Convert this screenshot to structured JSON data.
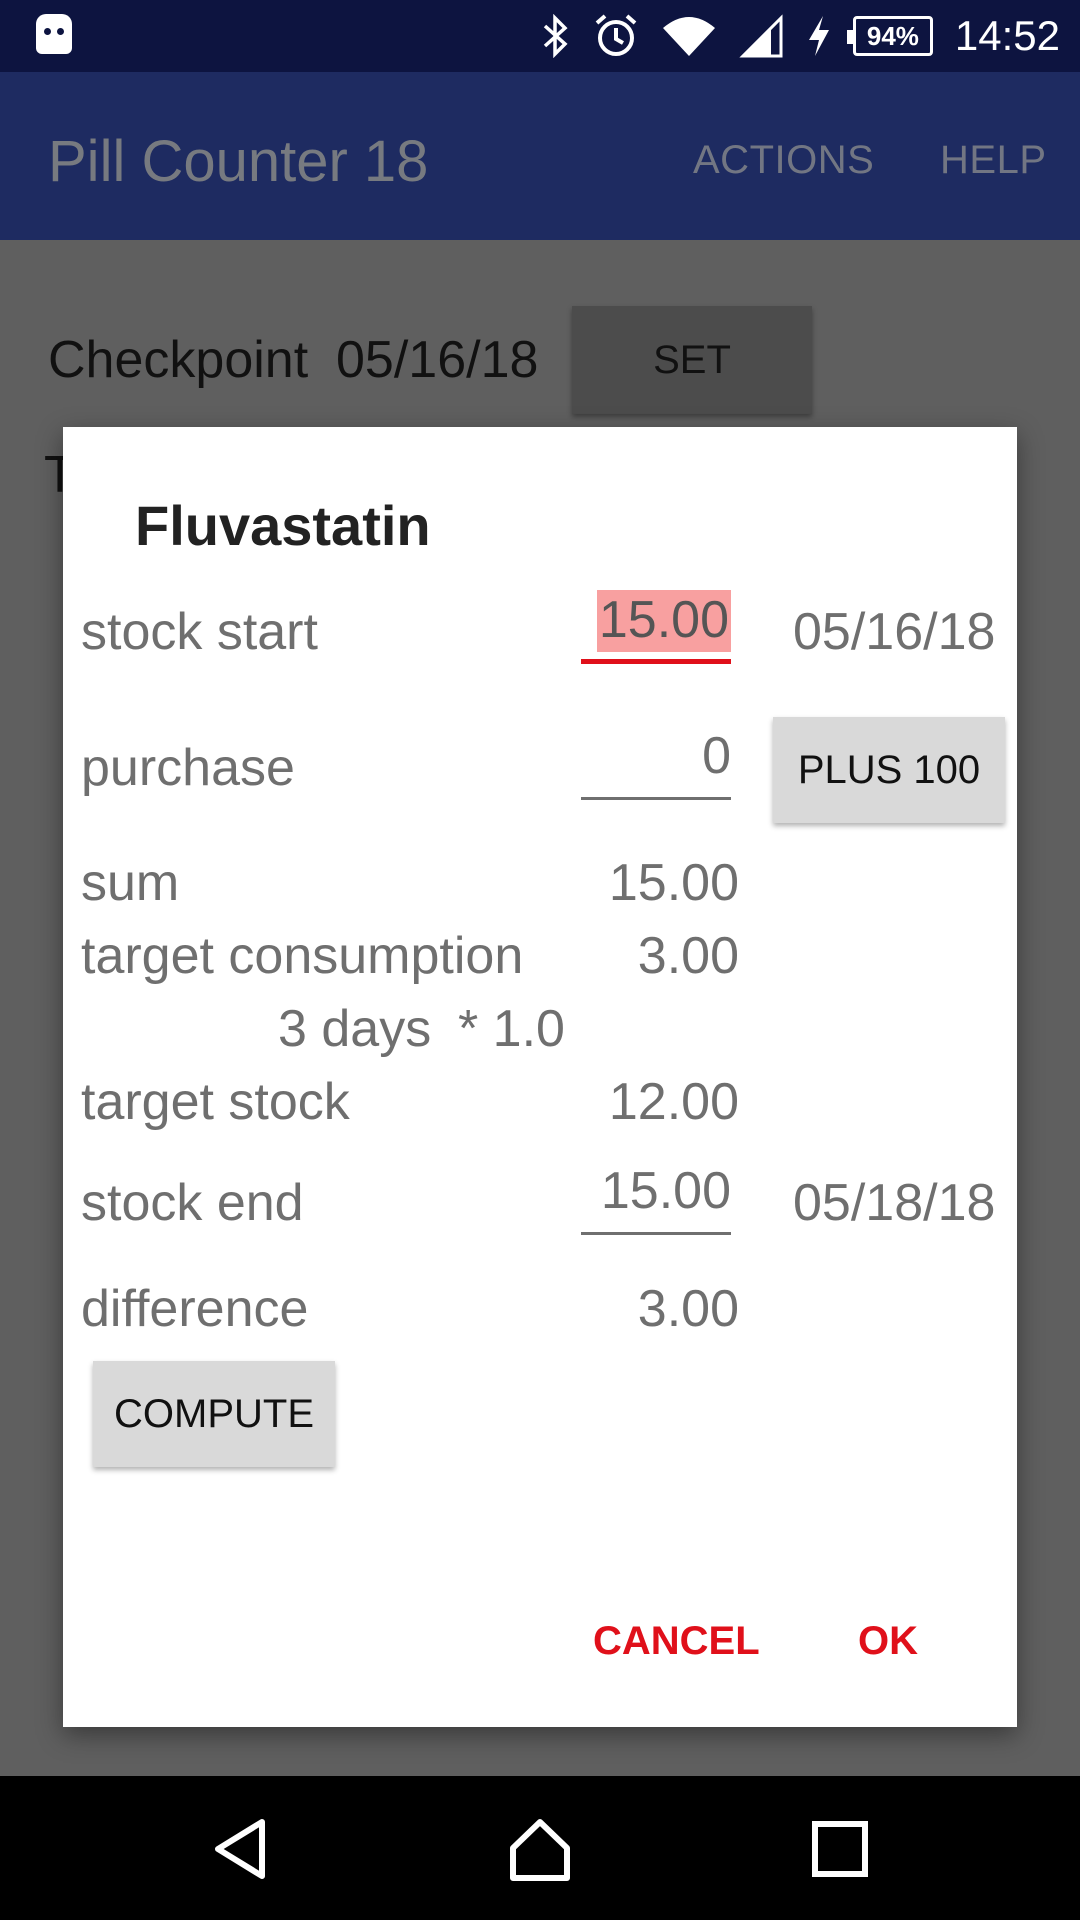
{
  "status_bar": {
    "battery": "94%",
    "time": "14:52"
  },
  "app_bar": {
    "title": "Pill Counter 18",
    "actions_label": "ACTIONS",
    "help_label": "HELP"
  },
  "background": {
    "checkpoint_label": "Checkpoint",
    "checkpoint_date": "05/16/18",
    "set_label": "SET",
    "partial_letter": "T"
  },
  "dialog": {
    "title": "Fluvastatin",
    "stock_start": {
      "label": "stock start",
      "value": "15.00",
      "date": "05/16/18"
    },
    "purchase": {
      "label": "purchase",
      "value": "0",
      "button": "PLUS 100"
    },
    "sum": {
      "label": "sum",
      "value": "15.00"
    },
    "target_consumption": {
      "label": "target consumption",
      "value": "3.00",
      "days_text": "3 days",
      "factor_text": "* 1.0"
    },
    "target_stock": {
      "label": "target stock",
      "value": "12.00"
    },
    "stock_end": {
      "label": "stock end",
      "value": "15.00",
      "date": "05/18/18"
    },
    "difference": {
      "label": "difference",
      "value": "3.00"
    },
    "compute_label": "COMPUTE",
    "cancel_label": "CANCEL",
    "ok_label": "OK"
  },
  "colors": {
    "status_bar": "#0d1440",
    "app_bar": "#1e2b61",
    "accent": "#e0101a",
    "dim_overlay": "#5f5f5f"
  }
}
